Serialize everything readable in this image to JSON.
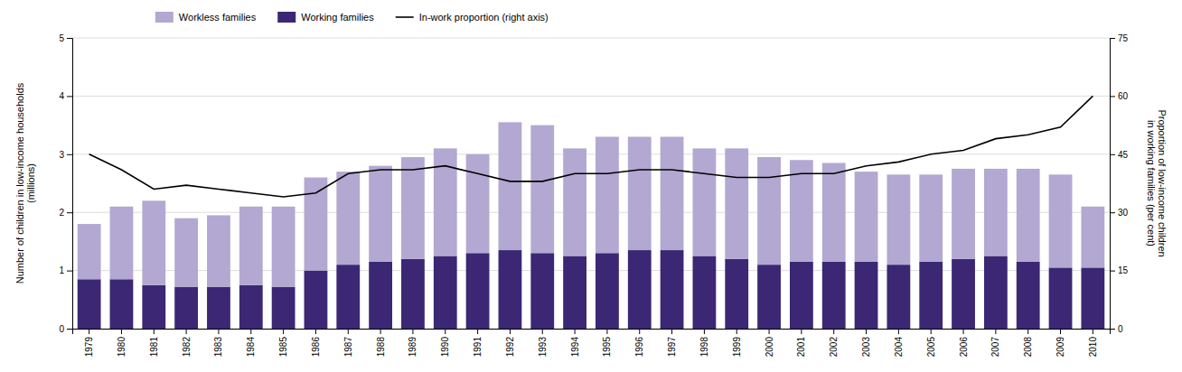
{
  "chart_data": {
    "type": "bar",
    "stacked": true,
    "grid": true,
    "legend": "top",
    "categories": [
      "1979",
      "1980",
      "1981",
      "1982",
      "1983",
      "1984",
      "1985",
      "1986",
      "1987",
      "1988",
      "1989",
      "1990",
      "1991",
      "1992",
      "1993",
      "1994",
      "1995",
      "1996",
      "1997",
      "1998",
      "1999",
      "2000",
      "2001",
      "2002",
      "2003",
      "2004",
      "2005",
      "2006",
      "2007",
      "2008",
      "2009",
      "2010"
    ],
    "series": [
      {
        "name": "Working families",
        "type": "bar",
        "color": "#3b2774",
        "values": [
          0.85,
          0.85,
          0.75,
          0.72,
          0.72,
          0.75,
          0.72,
          1.0,
          1.1,
          1.15,
          1.2,
          1.25,
          1.3,
          1.35,
          1.3,
          1.25,
          1.3,
          1.35,
          1.35,
          1.25,
          1.2,
          1.1,
          1.15,
          1.15,
          1.15,
          1.1,
          1.15,
          1.2,
          1.25,
          1.15,
          1.05,
          1.05
        ]
      },
      {
        "name": "Workless families",
        "type": "bar",
        "color": "#b3a8d1",
        "values": [
          0.95,
          1.25,
          1.45,
          1.18,
          1.23,
          1.35,
          1.38,
          1.6,
          1.6,
          1.65,
          1.75,
          1.85,
          1.7,
          2.2,
          2.2,
          1.85,
          2.0,
          1.95,
          1.95,
          1.85,
          1.9,
          1.85,
          1.75,
          1.7,
          1.55,
          1.55,
          1.5,
          1.55,
          1.5,
          1.6,
          1.6,
          1.05
        ]
      },
      {
        "name": "In-work proportion (right axis)",
        "type": "line",
        "axis": "y2",
        "color": "#000000",
        "values": [
          45,
          41,
          36,
          37,
          36,
          35,
          34,
          35,
          40,
          41,
          41,
          42,
          40,
          38,
          38,
          40,
          40,
          41,
          41,
          40,
          39,
          39,
          40,
          40,
          42,
          43,
          45,
          46,
          49,
          50,
          52,
          60
        ]
      }
    ],
    "ylabel": "Number of children in low-income households\n(millions)",
    "y2label": "Proportion of low-income children\nin working families (per cent)",
    "ylim": [
      0,
      5
    ],
    "yticks": [
      0,
      1,
      2,
      3,
      4,
      5
    ],
    "y2lim": [
      0,
      75
    ],
    "y2ticks": [
      0,
      15,
      30,
      45,
      60,
      75
    ]
  }
}
